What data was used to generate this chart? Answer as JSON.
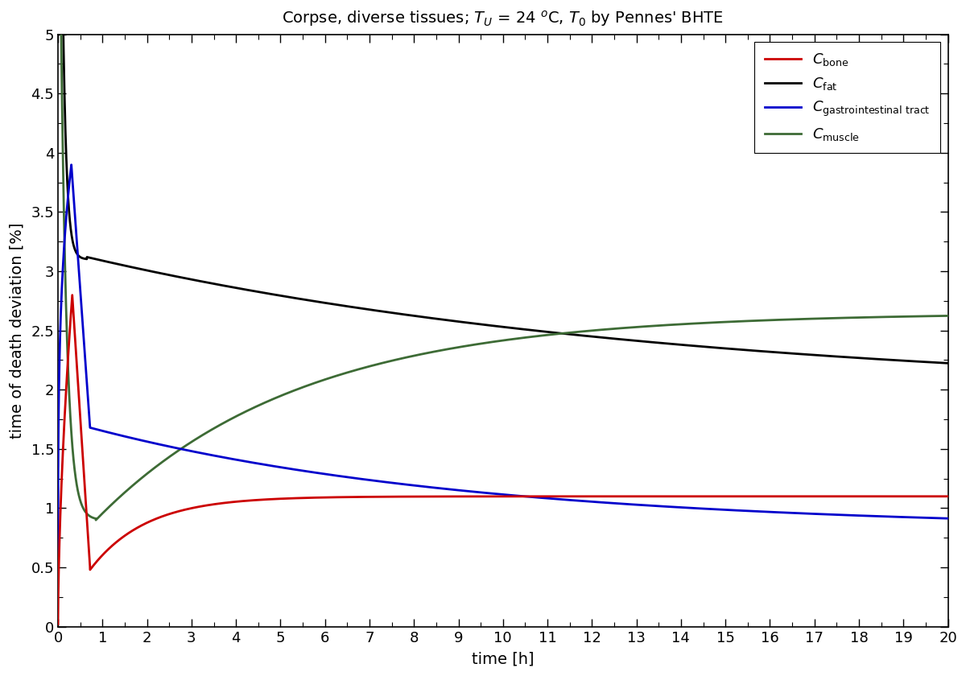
{
  "title_plain": "Corpse, diverse tissues; T",
  "xlabel": "time [h]",
  "ylabel": "time of death deviation [%]",
  "xlim": [
    0,
    20
  ],
  "ylim": [
    0,
    5
  ],
  "xticks": [
    0,
    1,
    2,
    3,
    4,
    5,
    6,
    7,
    8,
    9,
    10,
    11,
    12,
    13,
    14,
    15,
    16,
    17,
    18,
    19,
    20
  ],
  "ytick_vals": [
    0,
    0.5,
    1,
    1.5,
    2,
    2.5,
    3,
    3.5,
    4,
    4.5,
    5
  ],
  "ytick_labels": [
    "0",
    "0.5",
    "1",
    "1.5",
    "2",
    "2.5",
    "3",
    "3.5",
    "4",
    "4.5",
    "5"
  ],
  "colors": {
    "bone": "#cc0000",
    "fat": "#000000",
    "gastrointestinal": "#0000cc",
    "muscle": "#3d6b35"
  },
  "background": "#ffffff",
  "legend_labels": [
    "C_bone",
    "C_fat",
    "C_gastrointestinal tract",
    "C_muscle"
  ],
  "linewidth": 2.0
}
